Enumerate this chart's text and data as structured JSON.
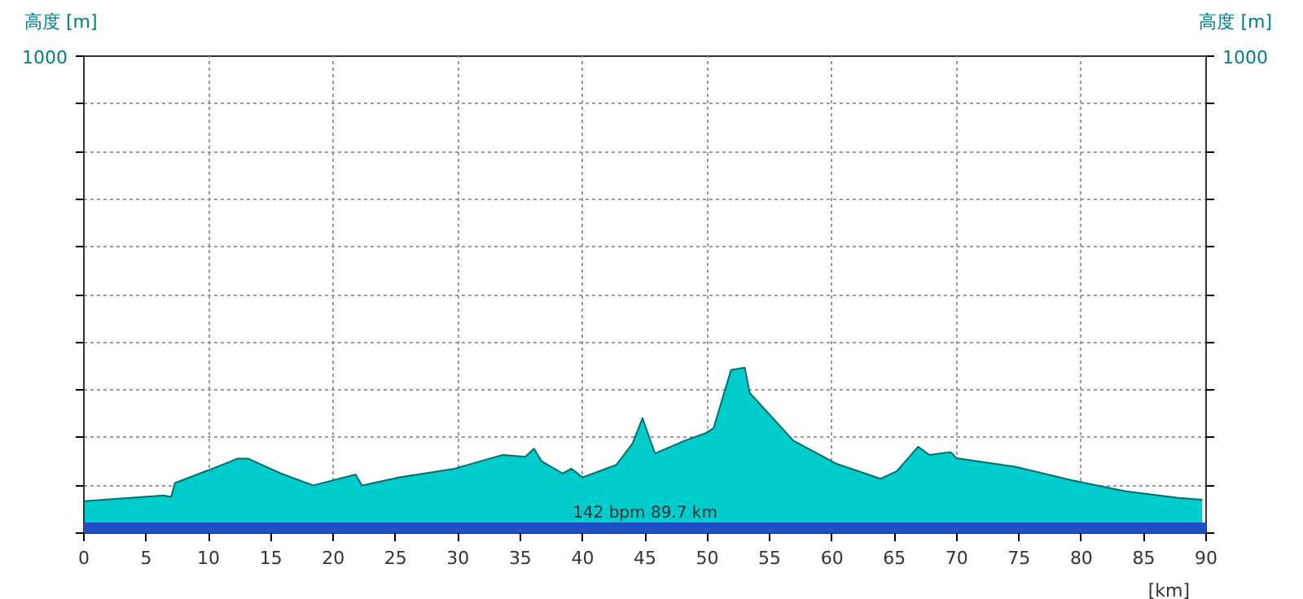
{
  "chart_data": {
    "type": "area",
    "ylabel": "高度 [m]",
    "y2label": "高度 [m]",
    "xlabel": "[km]",
    "x": [
      0,
      6.4,
      7,
      7.3,
      10.1,
      12.3,
      13.2,
      15.8,
      18.4,
      21.8,
      22.3,
      25.3,
      29.7,
      33.6,
      35.4,
      36.1,
      36.7,
      38.4,
      39.1,
      40.0,
      42.7,
      44.0,
      44.8,
      45.8,
      48.2,
      49.9,
      50.5,
      51.9,
      53.0,
      53.4,
      56.9,
      60.3,
      63.9,
      65.2,
      66.9,
      67.8,
      69.5,
      70.0,
      74.7,
      79.2,
      83.5,
      87.8,
      89.7
    ],
    "series": [
      {
        "color": "#00cccc",
        "values": [
          67,
          79,
          76,
          105,
          133,
          156,
          156,
          125,
          100,
          123,
          100,
          117,
          135,
          164,
          160,
          177,
          151,
          125,
          135,
          117,
          143,
          188,
          241,
          167,
          194,
          210,
          220,
          342,
          347,
          294,
          194,
          146,
          114,
          130,
          181,
          164,
          170,
          157,
          139,
          111,
          88,
          74,
          70
        ]
      }
    ],
    "xlim": [
      0,
      90
    ],
    "xticks": [
      0,
      5,
      10,
      15,
      20,
      25,
      30,
      35,
      40,
      45,
      50,
      55,
      60,
      65,
      70,
      75,
      80,
      85,
      90
    ],
    "ylim": [
      0,
      1000
    ],
    "yticks": [
      {
        "value": 0,
        "label": null
      },
      {
        "value": 100,
        "label": null
      },
      {
        "value": 200,
        "label": null
      },
      {
        "value": 300,
        "label": null
      },
      {
        "value": 400,
        "label": null
      },
      {
        "value": 500,
        "label": null
      },
      {
        "value": 600,
        "label": null
      },
      {
        "value": 700,
        "label": null
      },
      {
        "value": 800,
        "label": null
      },
      {
        "value": 900,
        "label": null
      },
      1000
    ],
    "annotations": [
      "1000"
    ],
    "bands": [
      {
        "axis": "y",
        "from": 0,
        "to": 22,
        "label": "142 bpm 89.7 km",
        "color": "#2050c8"
      }
    ],
    "grid": true
  }
}
